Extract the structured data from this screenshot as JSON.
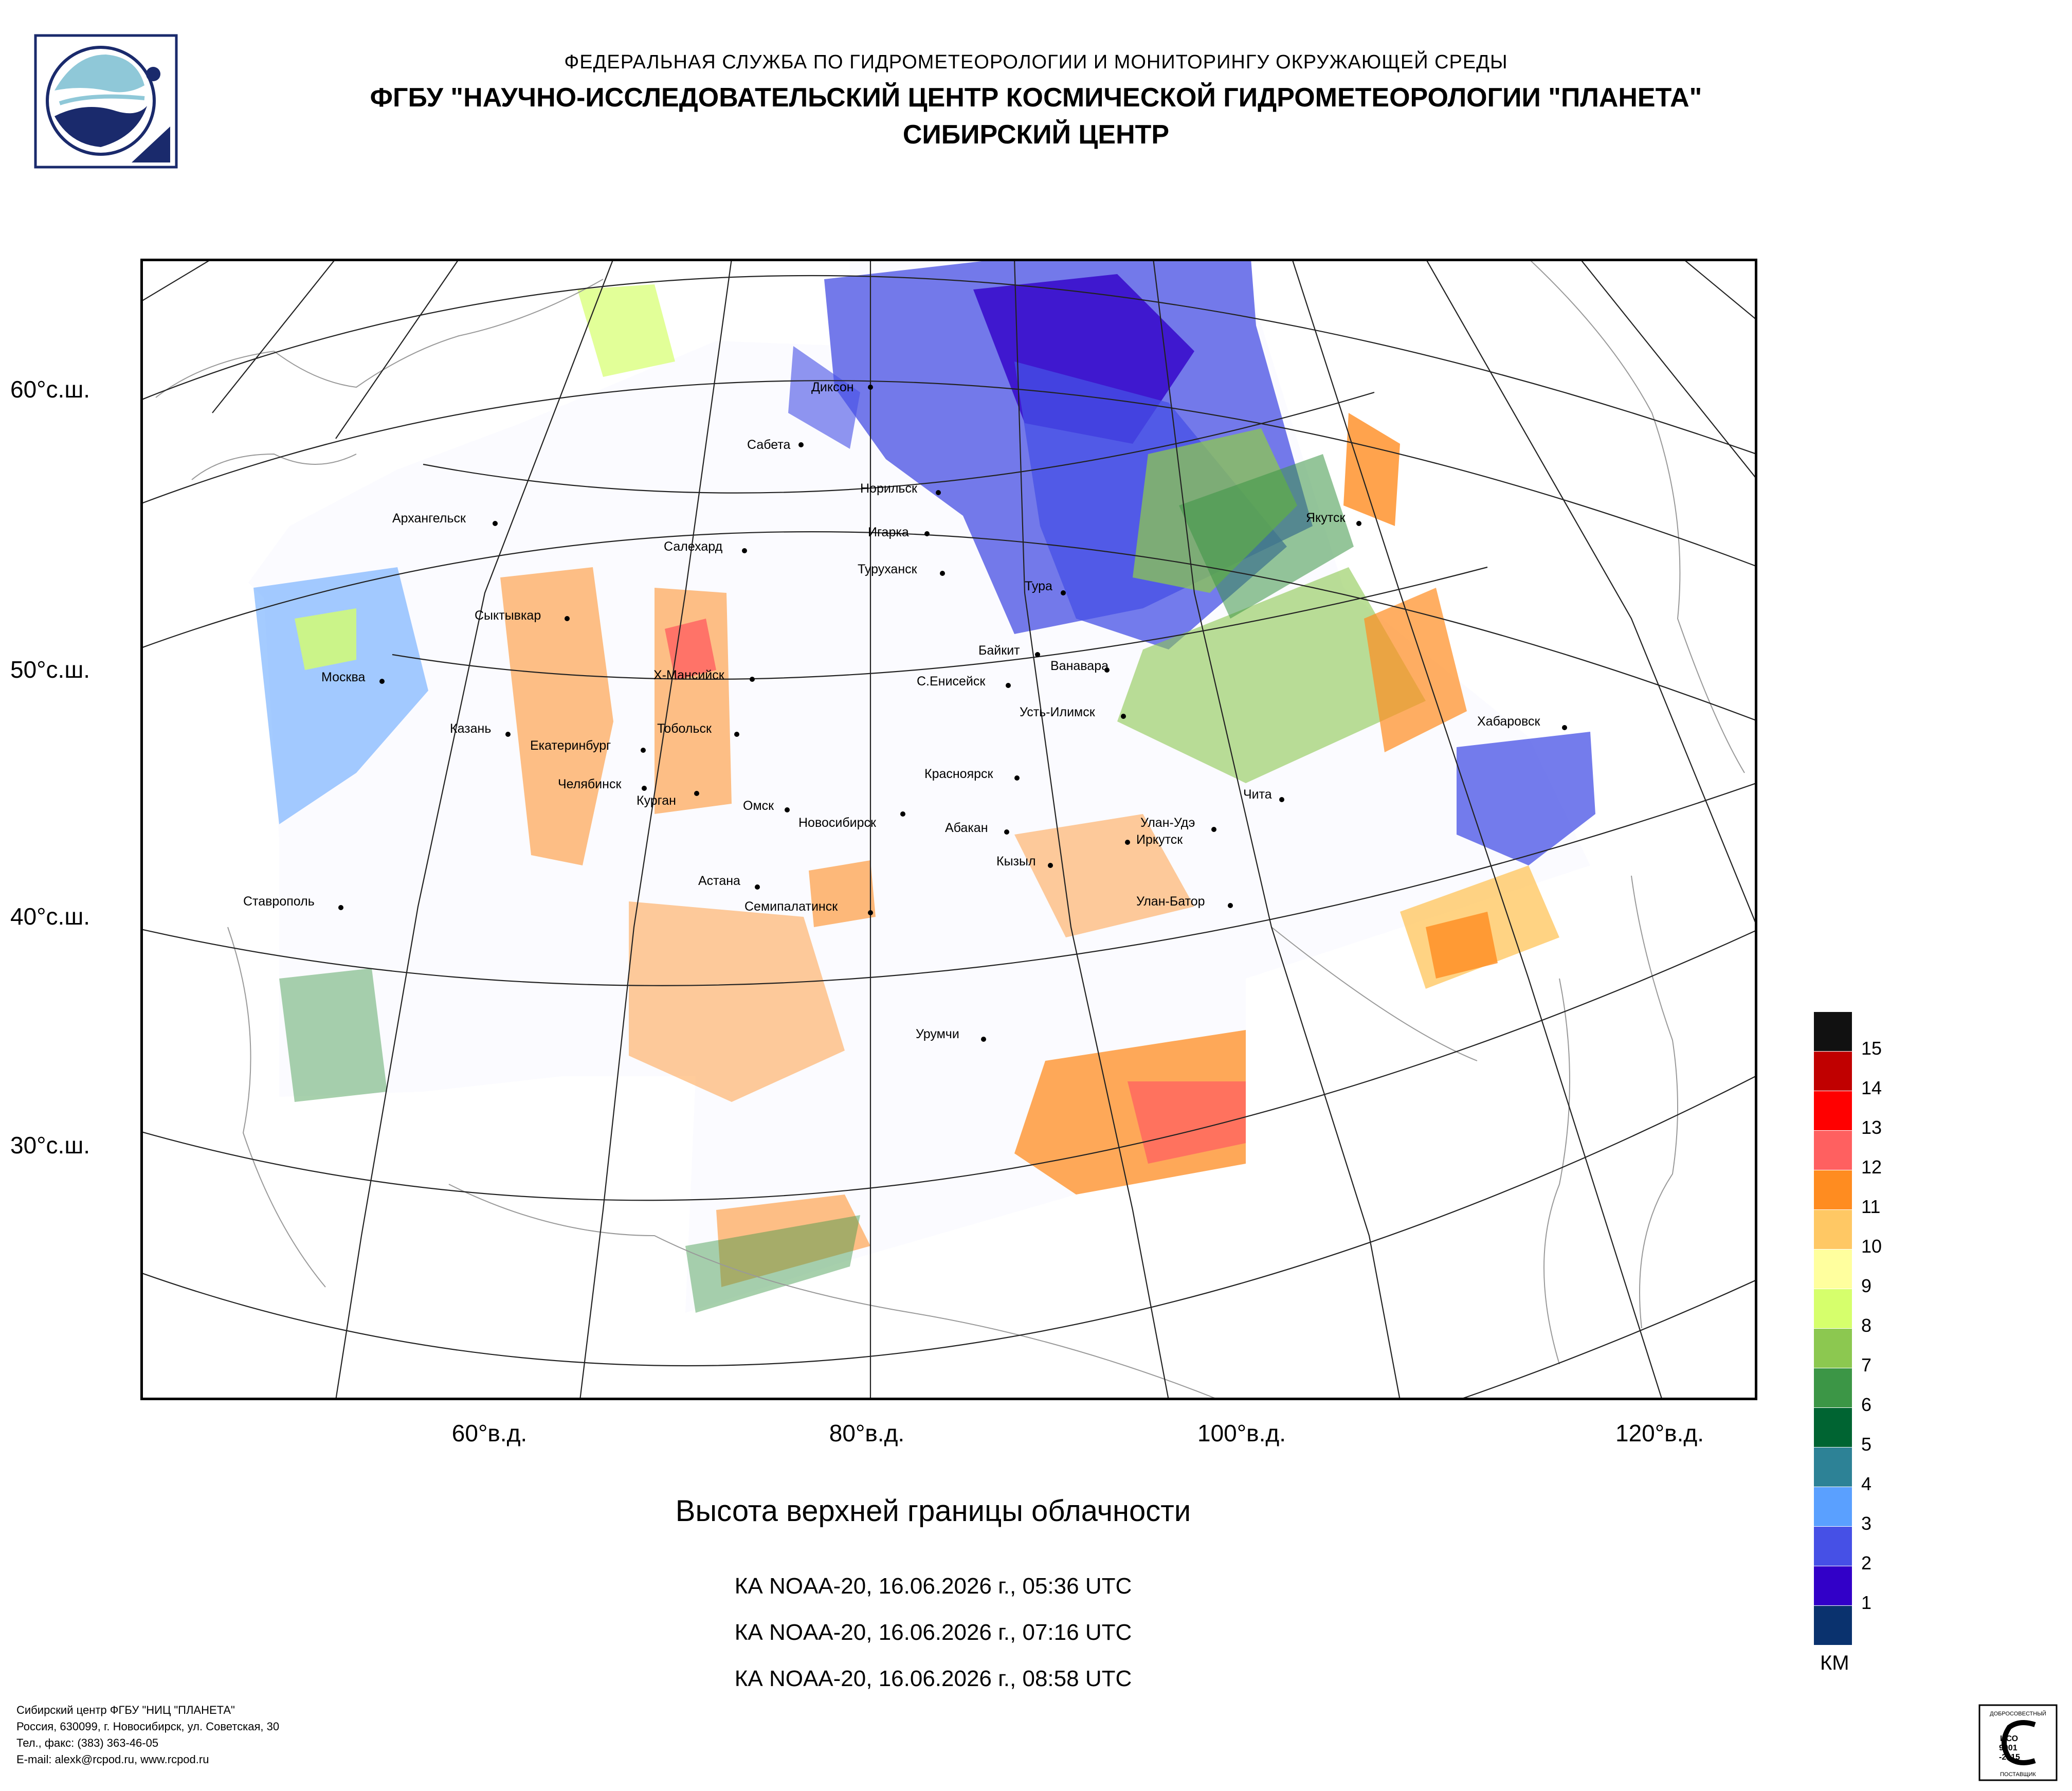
{
  "header": {
    "line1": "ФЕДЕРАЛЬНАЯ СЛУЖБА ПО ГИДРОМЕТЕОРОЛОГИИ И МОНИТОРИНГУ ОКРУЖАЮЩЕЙ СРЕДЫ",
    "line2": "ФГБУ \"НАУЧНО-ИССЛЕДОВАТЕЛЬСКИЙ ЦЕНТР КОСМИЧЕСКОЙ ГИДРОМЕТЕОРОЛОГИИ \"ПЛАНЕТА\"",
    "line3": "СИБИРСКИЙ ЦЕНТР"
  },
  "axes": {
    "latitude_labels": [
      "60°с.ш.",
      "50°с.ш.",
      "40°с.ш.",
      "30°с.ш."
    ],
    "longitude_labels": [
      "60°в.д.",
      "80°в.д.",
      "100°в.д.",
      "120°в.д."
    ]
  },
  "cities": {
    "dikson": "Диксон",
    "sabeta": "Сабета",
    "norilsk": "Норильск",
    "igarka": "Игарка",
    "arkhangelsk": "Архангельск",
    "salekhard": "Салехард",
    "turukhansk": "Туруханск",
    "tura": "Тура",
    "yakutsk": "Якутск",
    "syktyvkar": "Сыктывкар",
    "baikit": "Байкит",
    "vanavara": "Ванавара",
    "moskva": "Москва",
    "khmansiysk": "Х-Мансийск",
    "seniseysk": "С.Енисейск",
    "ustilimsk": "Усть-Илимск",
    "kazan": "Казань",
    "tobolsk": "Тобольск",
    "ekaterinburg": "Екатеринбург",
    "khabarovsk": "Хабаровск",
    "krasnoyarsk": "Красноярск",
    "chelyabinsk": "Челябинск",
    "kurgan": "Курган",
    "omsk": "Омск",
    "chita": "Чита",
    "novosibirsk": "Новосибирск",
    "abakan": "Абакан",
    "ulanude": "Улан-Удэ",
    "irkutsk": "Иркутск",
    "kyzyl": "Кызыл",
    "astana": "Астана",
    "stavropol": "Ставрополь",
    "semipalatinsk": "Семипалатинск",
    "ulanbator": "Улан-Батор",
    "urumchi": "Урумчи"
  },
  "map_title": "Высота верхней границы облачности",
  "passes": [
    "КА NOAA-20, 16.06.2026 г., 05:36 UTC",
    "КА NOAA-20, 16.06.2026 г., 07:16 UTC",
    "КА NOAA-20, 16.06.2026 г., 08:58 UTC"
  ],
  "legend": {
    "unit": "КМ",
    "entries": [
      {
        "label": "15",
        "color": "#111111"
      },
      {
        "label": "14",
        "color": "#c00000"
      },
      {
        "label": "13",
        "color": "#ff0000"
      },
      {
        "label": "12",
        "color": "#ff6060"
      },
      {
        "label": "11",
        "color": "#ff8c20"
      },
      {
        "label": "10",
        "color": "#ffc864"
      },
      {
        "label": "9",
        "color": "#ffff9e"
      },
      {
        "label": "8",
        "color": "#d6ff6c"
      },
      {
        "label": "7",
        "color": "#8cc850"
      },
      {
        "label": "6",
        "color": "#3c9646"
      },
      {
        "label": "5",
        "color": "#006432"
      },
      {
        "label": "4",
        "color": "#2d8296"
      },
      {
        "label": "3",
        "color": "#5aa0ff"
      },
      {
        "label": "2",
        "color": "#4650e6"
      },
      {
        "label": "1",
        "color": "#3200c8"
      },
      {
        "label": "",
        "color": "#0a326e"
      }
    ]
  },
  "footer": {
    "line1": "Сибирский центр ФГБУ \"НИЦ \"ПЛАНЕТА\"",
    "line2": "Россия, 630099, г. Новосибирск, ул. Советская, 30",
    "line3": "Тел., факс: (383) 363-46-05",
    "line4": "E-mail: alexk@rcpod.ru, www.rcpod.ru"
  },
  "iso_badge": {
    "top": "ДОБРОСОВЕСТНЫЙ",
    "mid1": "ИСО",
    "mid2": "9001",
    "mid3": "-2015",
    "bottom": "ПОСТАВЩИК"
  }
}
